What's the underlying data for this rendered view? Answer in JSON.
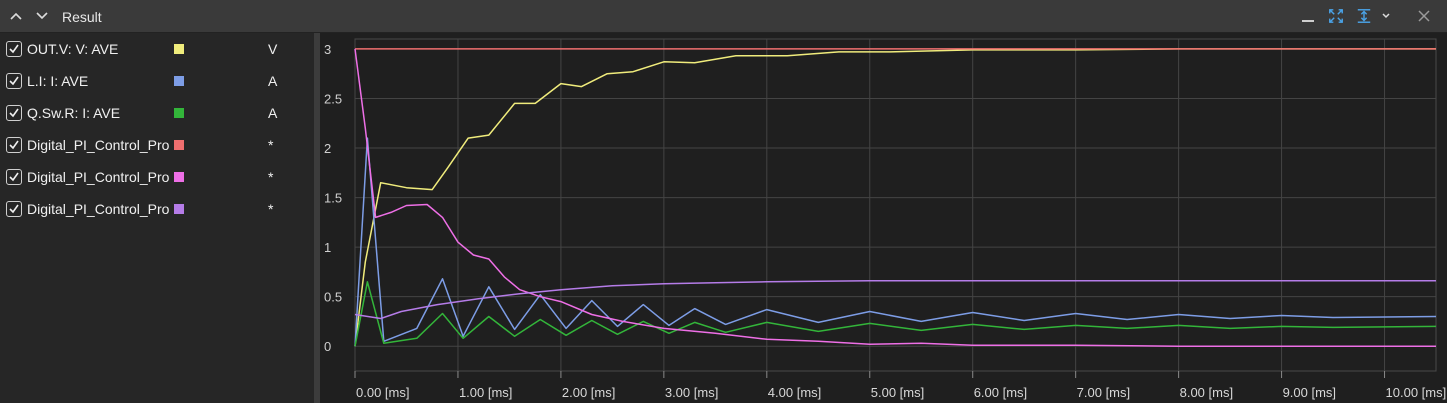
{
  "panel": {
    "title": "Result"
  },
  "icons": {
    "collapse": "chevron-up-icon",
    "expand": "chevron-down-icon",
    "minimize": "minimize-icon",
    "fit": "fit-to-view-icon",
    "fit_y": "fit-vertical-icon",
    "dropdown": "dropdown-arrow-icon",
    "close": "close-icon"
  },
  "legend": [
    {
      "name": "OUT.V: V: AVE",
      "unit": "V",
      "color": "#f0ec7c"
    },
    {
      "name": "L.I: I: AVE",
      "unit": "A",
      "color": "#7d9de6"
    },
    {
      "name": "Q.Sw.R: I: AVE",
      "unit": "A",
      "color": "#33b53a"
    },
    {
      "name": "Digital_PI_Control_Process",
      "unit": "*",
      "color": "#ef6f6f"
    },
    {
      "name": "Digital_PI_Control_Process",
      "unit": "*",
      "color": "#ee6fe6"
    },
    {
      "name": "Digital_PI_Control_Process",
      "unit": "*",
      "color": "#b57ce8"
    }
  ],
  "chart_data": {
    "type": "line",
    "xlabel": "",
    "ylabel": "",
    "xlim": [
      0,
      10.5
    ],
    "ylim": [
      -0.25,
      3.1
    ],
    "x_ticks": [
      0,
      1,
      2,
      3,
      4,
      5,
      6,
      7,
      8,
      9,
      10
    ],
    "x_tick_labels": [
      "0.00 [ms]",
      "1.00 [ms]",
      "2.00 [ms]",
      "3.00 [ms]",
      "4.00 [ms]",
      "5.00 [ms]",
      "6.00 [ms]",
      "7.00 [ms]",
      "8.00 [ms]",
      "9.00 [ms]",
      "10.00 [ms]"
    ],
    "y_ticks": [
      0,
      0.5,
      1,
      1.5,
      2,
      2.5,
      3
    ],
    "y_tick_labels": [
      "0",
      "0.5",
      "1",
      "1.5",
      "2",
      "2.5",
      "3"
    ],
    "grid": true,
    "series": [
      {
        "name": "OUT.V: V: AVE",
        "color": "#f0ec7c",
        "x": [
          0,
          0.1,
          0.25,
          0.5,
          0.75,
          0.9,
          1.1,
          1.3,
          1.55,
          1.75,
          2.0,
          2.2,
          2.45,
          2.7,
          3.0,
          3.3,
          3.7,
          4.2,
          4.7,
          5.2,
          6.0,
          7.0,
          8.0,
          9.0,
          10.5
        ],
        "y": [
          0,
          0.85,
          1.65,
          1.6,
          1.58,
          1.8,
          2.1,
          2.13,
          2.45,
          2.45,
          2.65,
          2.62,
          2.75,
          2.77,
          2.87,
          2.86,
          2.93,
          2.93,
          2.97,
          2.97,
          2.99,
          2.99,
          3.0,
          3.0,
          3.0
        ]
      },
      {
        "name": "L.I: I: AVE",
        "color": "#7d9de6",
        "x": [
          0,
          0.12,
          0.28,
          0.6,
          0.85,
          1.05,
          1.3,
          1.55,
          1.8,
          2.05,
          2.3,
          2.55,
          2.8,
          3.05,
          3.3,
          3.6,
          4.0,
          4.5,
          5.0,
          5.5,
          6.0,
          6.5,
          7.0,
          7.5,
          8.0,
          8.5,
          9.0,
          9.5,
          10.5
        ],
        "y": [
          0,
          2.1,
          0.05,
          0.18,
          0.68,
          0.1,
          0.6,
          0.17,
          0.52,
          0.18,
          0.46,
          0.2,
          0.42,
          0.21,
          0.38,
          0.22,
          0.37,
          0.24,
          0.35,
          0.25,
          0.34,
          0.26,
          0.33,
          0.27,
          0.32,
          0.28,
          0.31,
          0.29,
          0.3
        ]
      },
      {
        "name": "Q.Sw.R: I: AVE",
        "color": "#33b53a",
        "x": [
          0,
          0.12,
          0.28,
          0.6,
          0.85,
          1.05,
          1.3,
          1.55,
          1.8,
          2.05,
          2.3,
          2.55,
          2.8,
          3.05,
          3.3,
          3.6,
          4.0,
          4.5,
          5.0,
          5.5,
          6.0,
          6.5,
          7.0,
          7.5,
          8.0,
          8.5,
          9.0,
          9.5,
          10.5
        ],
        "y": [
          0,
          0.65,
          0.03,
          0.08,
          0.33,
          0.08,
          0.3,
          0.1,
          0.27,
          0.11,
          0.26,
          0.12,
          0.25,
          0.13,
          0.24,
          0.14,
          0.24,
          0.15,
          0.23,
          0.16,
          0.22,
          0.17,
          0.21,
          0.18,
          0.21,
          0.18,
          0.2,
          0.19,
          0.2
        ]
      },
      {
        "name": "Digital_PI_Control_Process",
        "color": "#ef6f6f",
        "x": [
          0,
          10.5
        ],
        "y": [
          3.0,
          3.0
        ]
      },
      {
        "name": "Digital_PI_Control_Process",
        "color": "#ee6fe6",
        "x": [
          0,
          0.1,
          0.2,
          0.35,
          0.5,
          0.7,
          0.85,
          1.0,
          1.15,
          1.3,
          1.45,
          1.6,
          1.8,
          2.0,
          2.3,
          2.6,
          3.0,
          3.5,
          4.0,
          4.5,
          5.0,
          5.5,
          6.0,
          7.0,
          8.0,
          9.0,
          10.5
        ],
        "y": [
          3.0,
          2.2,
          1.3,
          1.35,
          1.42,
          1.43,
          1.3,
          1.05,
          0.92,
          0.88,
          0.7,
          0.57,
          0.5,
          0.45,
          0.32,
          0.25,
          0.18,
          0.13,
          0.07,
          0.05,
          0.02,
          0.03,
          0.01,
          0.01,
          0.0,
          0.0,
          0.0
        ]
      },
      {
        "name": "Digital_PI_Control_Process",
        "color": "#b57ce8",
        "x": [
          0,
          0.25,
          0.45,
          0.8,
          1.2,
          1.6,
          2.0,
          2.5,
          3.0,
          3.5,
          4.0,
          5.0,
          6.0,
          8.0,
          10.5
        ],
        "y": [
          0.32,
          0.28,
          0.35,
          0.42,
          0.48,
          0.53,
          0.57,
          0.61,
          0.63,
          0.64,
          0.65,
          0.66,
          0.66,
          0.66,
          0.66
        ]
      }
    ]
  }
}
